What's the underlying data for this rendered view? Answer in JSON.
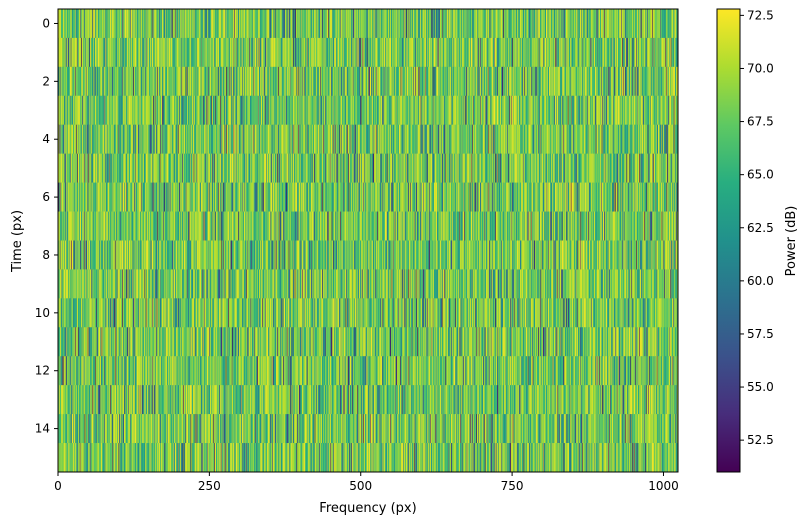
{
  "chart_data": {
    "type": "heatmap",
    "title": "",
    "xlabel": "Frequency (px)",
    "ylabel": "Time (px)",
    "xlim": [
      0,
      1024
    ],
    "ylim": [
      15.5,
      -0.5
    ],
    "rows": 16,
    "cols": 1024,
    "xticks": [
      0,
      250,
      500,
      750,
      1000
    ],
    "xtick_labels": [
      "0",
      "250",
      "500",
      "750",
      "1000"
    ],
    "yticks": [
      0,
      2,
      4,
      6,
      8,
      10,
      12,
      14
    ],
    "ytick_labels": [
      "0",
      "2",
      "4",
      "6",
      "8",
      "10",
      "12",
      "14"
    ],
    "colormap": "viridis",
    "value_range": [
      51,
      72.8
    ],
    "value_distribution": {
      "typical_min": 60,
      "typical_max": 72.5,
      "outlier_fraction": 0.06
    },
    "colorbar": {
      "label": "Power (dB)",
      "ticks": [
        52.5,
        55.0,
        57.5,
        60.0,
        62.5,
        65.0,
        67.5,
        70.0,
        72.5
      ],
      "tick_labels": [
        "52.5",
        "55.0",
        "57.5",
        "60.0",
        "62.5",
        "65.0",
        "67.5",
        "70.0",
        "72.5"
      ]
    },
    "grid": false
  }
}
